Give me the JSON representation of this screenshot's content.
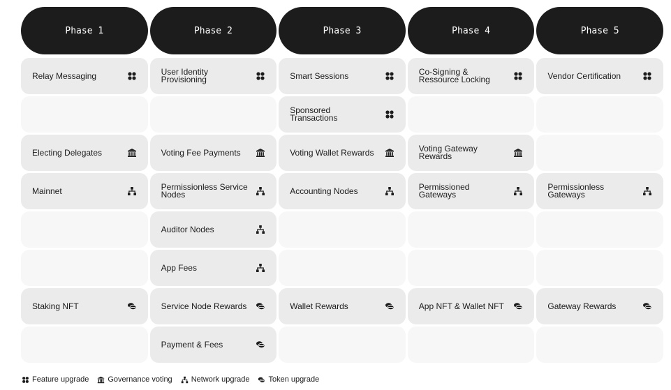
{
  "phases": [
    {
      "title": "Phase 1",
      "cells": [
        {
          "label": "Relay Messaging",
          "type": "feature"
        },
        null,
        {
          "label": "Electing Delegates",
          "type": "governance"
        },
        {
          "label": "Mainnet",
          "type": "network"
        },
        null,
        null,
        {
          "label": "Staking NFT",
          "type": "token"
        },
        null
      ]
    },
    {
      "title": "Phase 2",
      "cells": [
        {
          "label": "User Identity Provisioning",
          "type": "feature"
        },
        null,
        {
          "label": "Voting Fee Payments",
          "type": "governance"
        },
        {
          "label": "Permissionless Service Nodes",
          "type": "network"
        },
        {
          "label": "Auditor Nodes",
          "type": "network"
        },
        {
          "label": "App Fees",
          "type": "network"
        },
        {
          "label": "Service Node Rewards",
          "type": "token"
        },
        {
          "label": "Payment & Fees",
          "type": "token"
        }
      ]
    },
    {
      "title": "Phase 3",
      "cells": [
        {
          "label": "Smart Sessions",
          "type": "feature"
        },
        {
          "label": "Sponsored Transactions",
          "type": "feature"
        },
        {
          "label": "Voting Wallet Rewards",
          "type": "governance"
        },
        {
          "label": "Accounting Nodes",
          "type": "network"
        },
        null,
        null,
        {
          "label": "Wallet Rewards",
          "type": "token"
        },
        null
      ]
    },
    {
      "title": "Phase 4",
      "cells": [
        {
          "label": "Co-Signing & Ressource Locking",
          "type": "feature"
        },
        null,
        {
          "label": "Voting Gateway Rewards",
          "type": "governance"
        },
        {
          "label": "Permissioned Gateways",
          "type": "network"
        },
        null,
        null,
        {
          "label": "App NFT & Wallet NFT",
          "type": "token"
        },
        null
      ]
    },
    {
      "title": "Phase 5",
      "cells": [
        {
          "label": "Vendor Certification",
          "type": "feature"
        },
        null,
        null,
        {
          "label": "Permissionless Gateways",
          "type": "network"
        },
        null,
        null,
        {
          "label": "Gateway Rewards",
          "type": "token"
        },
        null
      ]
    }
  ],
  "legend": [
    {
      "type": "feature",
      "label": "Feature upgrade",
      "icon": "four-dots-icon"
    },
    {
      "type": "governance",
      "label": "Governance voting",
      "icon": "bank-icon"
    },
    {
      "type": "network",
      "label": "Network upgrade",
      "icon": "network-icon"
    },
    {
      "type": "token",
      "label": "Token upgrade",
      "icon": "coins-icon"
    }
  ],
  "colors": {
    "header": "#1c1c1c",
    "filled": "#ebebeb",
    "empty": "#f7f7f7"
  }
}
